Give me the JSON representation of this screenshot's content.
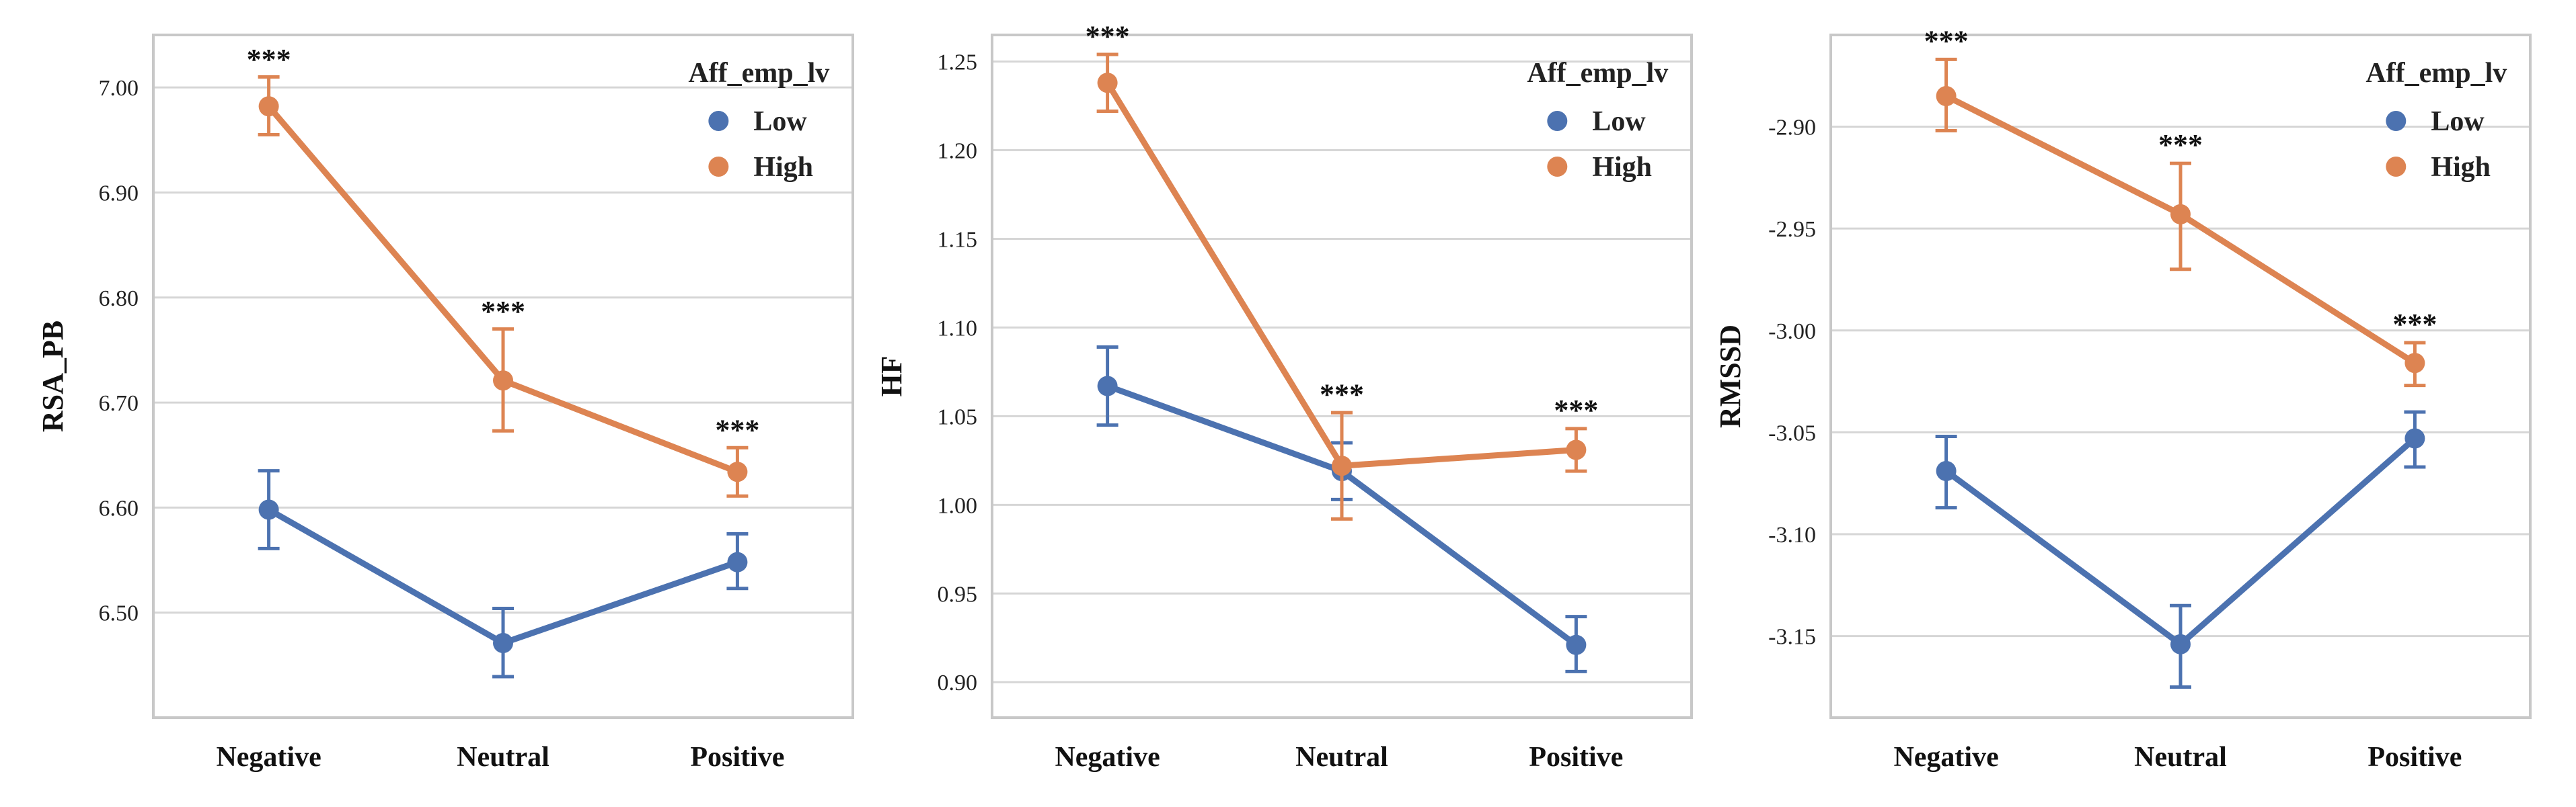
{
  "chart_data": [
    {
      "type": "line",
      "ylabel": "RSA_PB",
      "categories": [
        "Negative",
        "Neutral",
        "Positive"
      ],
      "ylim": [
        6.4,
        7.05
      ],
      "yticks": [
        6.5,
        6.6,
        6.7,
        6.8,
        6.9,
        7.0
      ],
      "ytick_labels": [
        "6.50",
        "6.60",
        "6.70",
        "6.80",
        "6.90",
        "7.00"
      ],
      "legend_title": "Aff_emp_lv",
      "series": [
        {
          "name": "Low",
          "color": "#4c72b0",
          "values": [
            6.598,
            6.471,
            6.548
          ],
          "err_low": [
            6.561,
            6.439,
            6.523
          ],
          "err_high": [
            6.635,
            6.504,
            6.575
          ]
        },
        {
          "name": "High",
          "color": "#dd8452",
          "values": [
            6.982,
            6.721,
            6.634
          ],
          "err_low": [
            6.955,
            6.673,
            6.611
          ],
          "err_high": [
            7.01,
            6.77,
            6.657
          ]
        }
      ],
      "annotations": [
        "***",
        "***",
        "***"
      ],
      "annotation_y": [
        7.011,
        6.771,
        6.658
      ]
    },
    {
      "type": "line",
      "ylabel": "HF",
      "categories": [
        "Negative",
        "Neutral",
        "Positive"
      ],
      "ylim": [
        0.88,
        1.265
      ],
      "yticks": [
        0.9,
        0.95,
        1.0,
        1.05,
        1.1,
        1.15,
        1.2,
        1.25
      ],
      "ytick_labels": [
        "0.90",
        "0.95",
        "1.00",
        "1.05",
        "1.10",
        "1.15",
        "1.20",
        "1.25"
      ],
      "legend_title": "Aff_emp_lv",
      "series": [
        {
          "name": "Low",
          "color": "#4c72b0",
          "values": [
            1.067,
            1.019,
            0.921
          ],
          "err_low": [
            1.045,
            1.003,
            0.906
          ],
          "err_high": [
            1.089,
            1.035,
            0.937
          ]
        },
        {
          "name": "High",
          "color": "#dd8452",
          "values": [
            1.238,
            1.022,
            1.031
          ],
          "err_low": [
            1.222,
            0.992,
            1.019
          ],
          "err_high": [
            1.254,
            1.052,
            1.043
          ]
        }
      ],
      "annotations": [
        "***",
        "***",
        "***"
      ],
      "annotation_y": [
        1.255,
        1.053,
        1.044
      ]
    },
    {
      "type": "line",
      "ylabel": "RMSSD",
      "categories": [
        "Negative",
        "Neutral",
        "Positive"
      ],
      "ylim": [
        -3.19,
        -2.855
      ],
      "yticks": [
        -3.15,
        -3.1,
        -3.05,
        -3.0,
        -2.95,
        -2.9
      ],
      "ytick_labels": [
        "-3.15",
        "-3.10",
        "-3.05",
        "-3.00",
        "-2.95",
        "-2.90"
      ],
      "legend_title": "Aff_emp_lv",
      "series": [
        {
          "name": "Low",
          "color": "#4c72b0",
          "values": [
            -3.069,
            -3.154,
            -3.053
          ],
          "err_low": [
            -3.087,
            -3.175,
            -3.067
          ],
          "err_high": [
            -3.052,
            -3.135,
            -3.04
          ]
        },
        {
          "name": "High",
          "color": "#dd8452",
          "values": [
            -2.885,
            -2.943,
            -3.016
          ],
          "err_low": [
            -2.902,
            -2.97,
            -3.027
          ],
          "err_high": [
            -2.867,
            -2.918,
            -3.006
          ]
        }
      ],
      "annotations": [
        "***",
        "***",
        "***"
      ],
      "annotation_y": [
        -2.866,
        -2.917,
        -3.005
      ]
    }
  ]
}
